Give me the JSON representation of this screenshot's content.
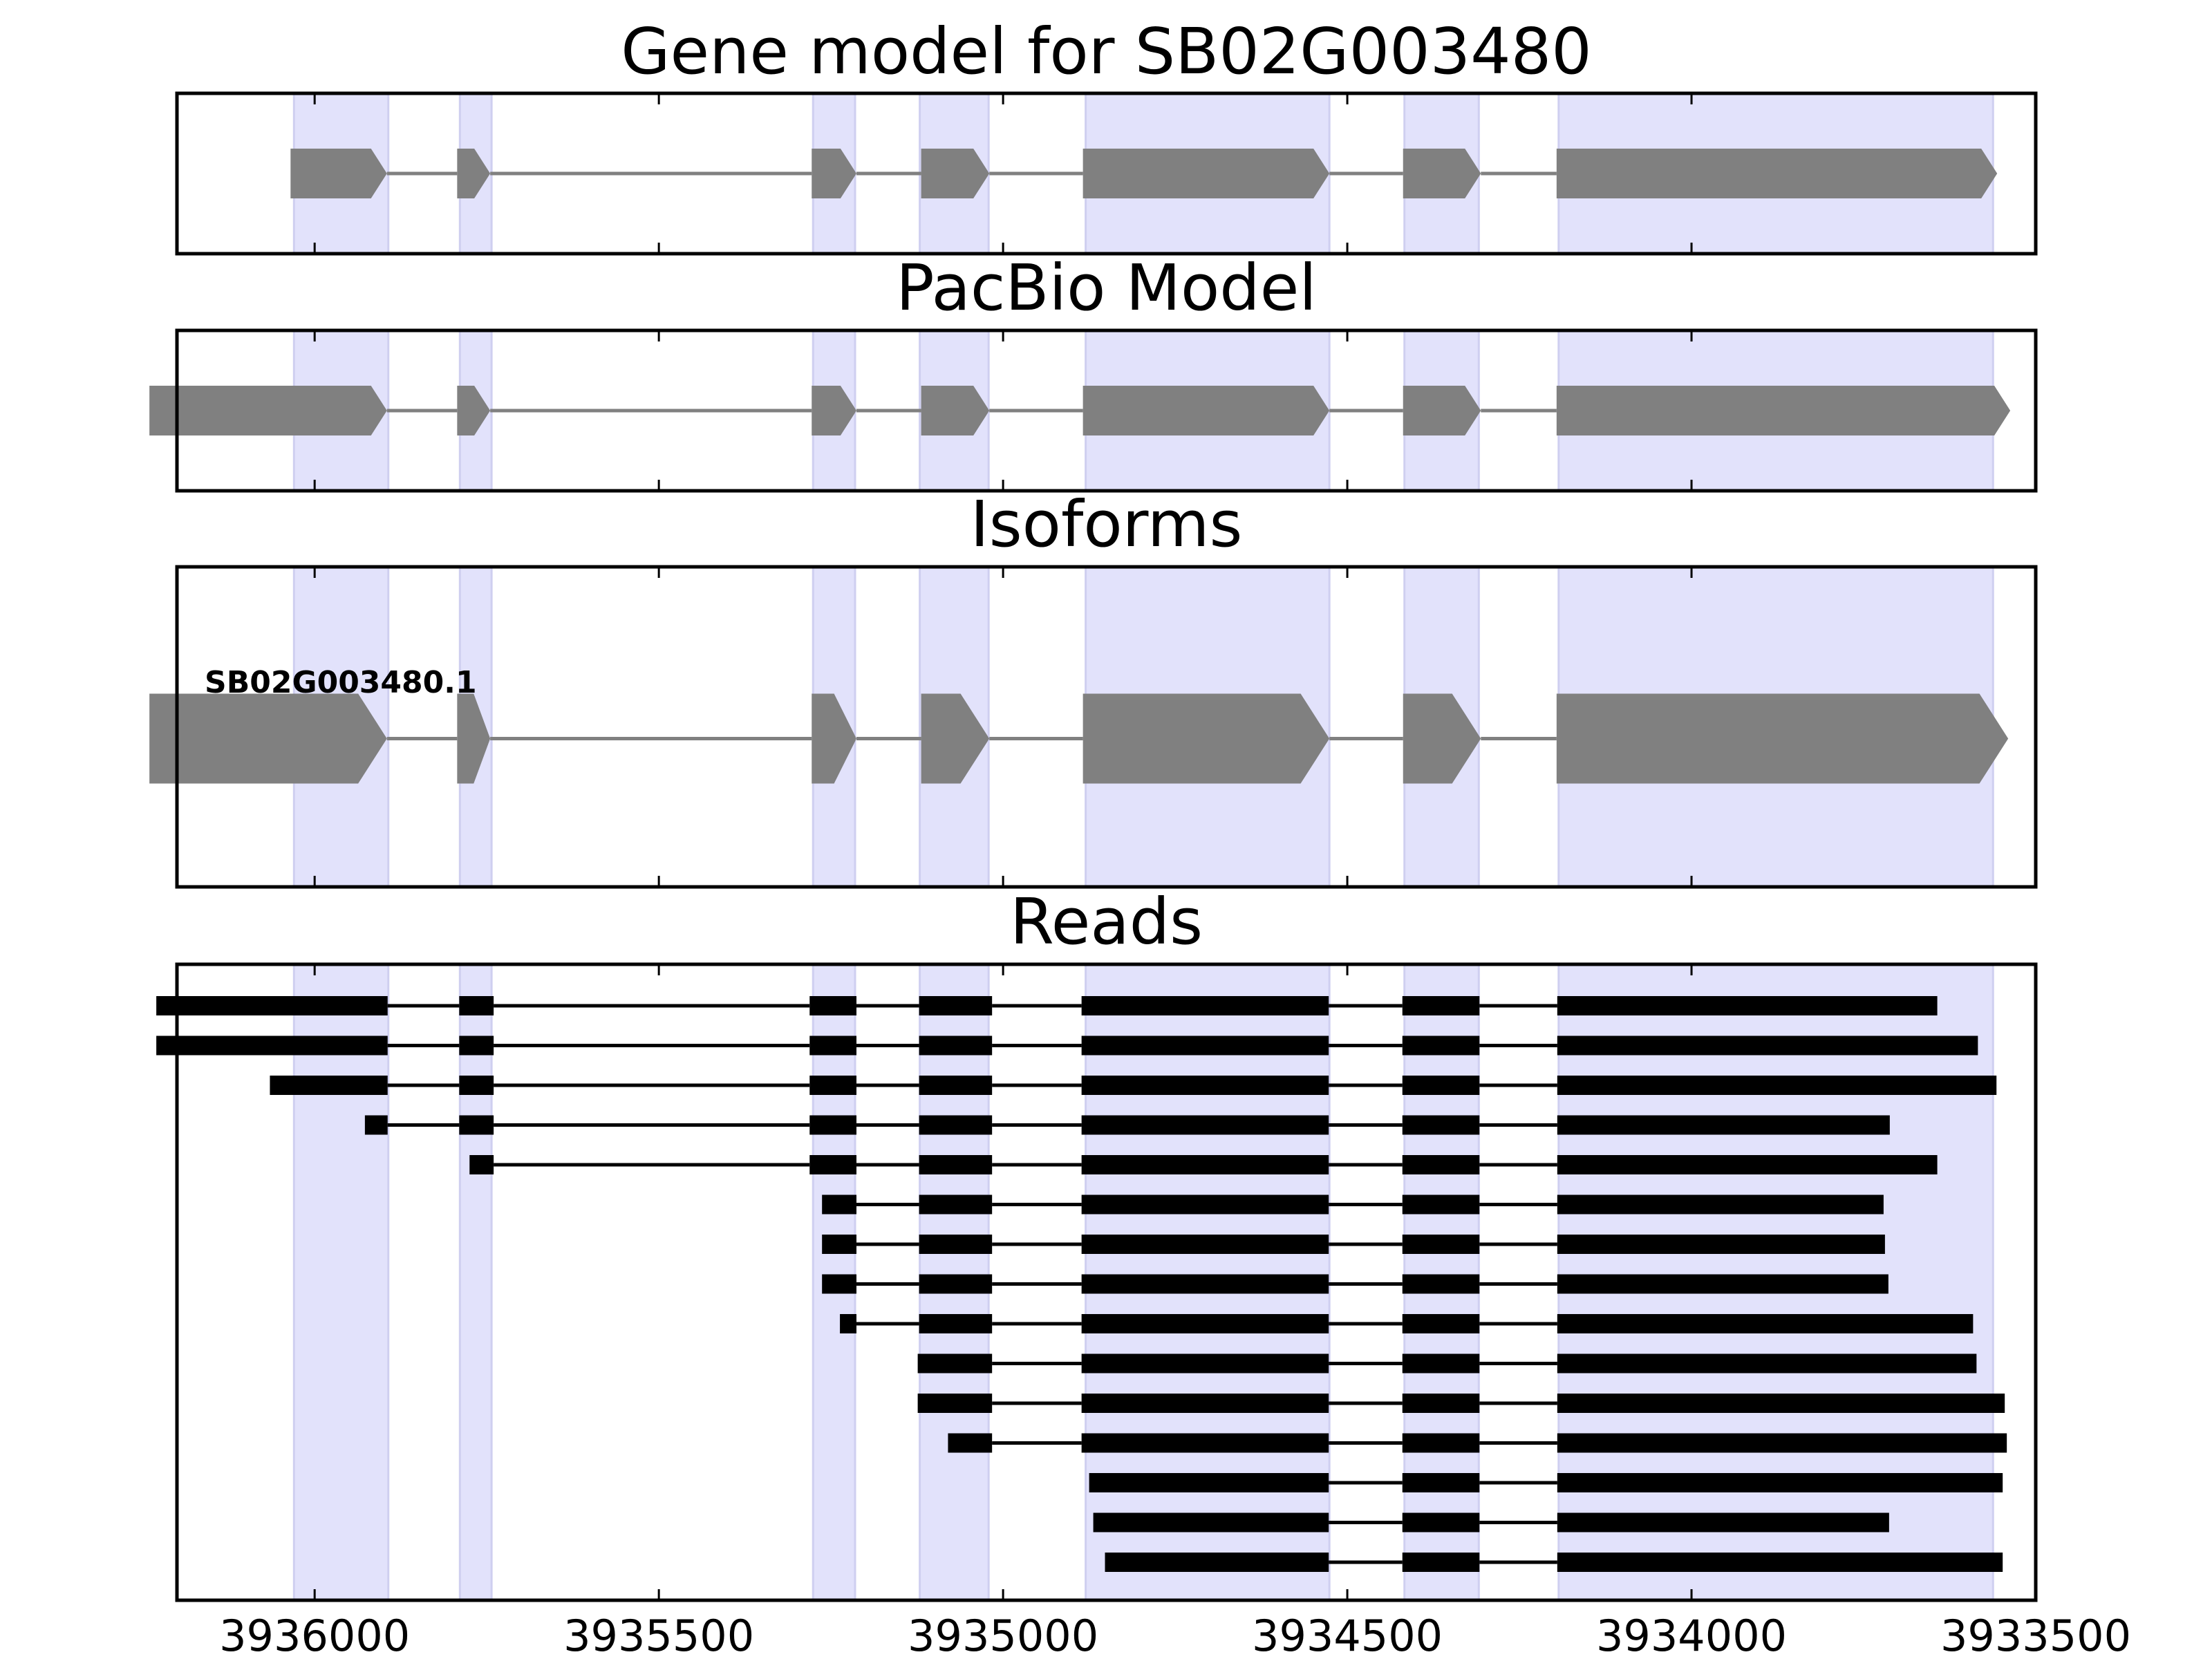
{
  "chart_data": {
    "type": "gene-track",
    "gene": "SB02G003480",
    "x_range": [
      3936200,
      3933500
    ],
    "x_ticks": [
      3936000,
      3935500,
      3935000,
      3934500,
      3934000,
      3933500
    ],
    "x_tick_labels": [
      "3936000",
      "3935500",
      "3935000",
      "3934500",
      "3934000",
      "3933500"
    ],
    "colors": {
      "exon_fill": "#808080",
      "intron_line": "#808080",
      "read_fill": "#000000",
      "highlight": "#e2e2fb",
      "highlight_edge": "#cfcff0",
      "frame": "#000000"
    },
    "highlight_regions": [
      [
        3936030,
        3935893
      ],
      [
        3935789,
        3935743
      ],
      [
        3935276,
        3935215
      ],
      [
        3935121,
        3935021
      ],
      [
        3934880,
        3934526
      ],
      [
        3934417,
        3934309
      ],
      [
        3934193,
        3933562
      ]
    ],
    "panels": [
      {
        "title": "Gene model for SB02G003480",
        "kind": "model",
        "models": [
          {
            "label": "",
            "exons": [
              [
                3936035,
                3935895
              ],
              [
                3935793,
                3935745
              ],
              [
                3935278,
                3935213
              ],
              [
                3935119,
                3935020
              ],
              [
                3934884,
                3934526
              ],
              [
                3934419,
                3934306
              ],
              [
                3934196,
                3933556
              ]
            ]
          }
        ]
      },
      {
        "title": "PacBio Model",
        "kind": "model",
        "models": [
          {
            "label": "",
            "exons": [
              [
                3936240,
                3935895
              ],
              [
                3935793,
                3935745
              ],
              [
                3935278,
                3935213
              ],
              [
                3935119,
                3935020
              ],
              [
                3934884,
                3934526
              ],
              [
                3934419,
                3934306
              ],
              [
                3934196,
                3933537
              ]
            ]
          }
        ]
      },
      {
        "title": "Isoforms",
        "kind": "model",
        "models": [
          {
            "label": "SB02G003480.1",
            "exons": [
              [
                3936240,
                3935895
              ],
              [
                3935793,
                3935745
              ],
              [
                3935278,
                3935213
              ],
              [
                3935119,
                3935020
              ],
              [
                3934884,
                3934526
              ],
              [
                3934419,
                3934306
              ],
              [
                3934196,
                3933540
              ]
            ]
          }
        ]
      },
      {
        "title": "Reads",
        "kind": "reads",
        "reads": [
          [
            [
              3936230,
              3935894
            ],
            [
              3935790,
              3935740
            ],
            [
              3935281,
              3935213
            ],
            [
              3935122,
              3935016
            ],
            [
              3934886,
              3934527
            ],
            [
              3934420,
              3934308
            ],
            [
              3934195,
              3933643
            ]
          ],
          [
            [
              3936230,
              3935894
            ],
            [
              3935790,
              3935740
            ],
            [
              3935281,
              3935213
            ],
            [
              3935122,
              3935016
            ],
            [
              3934886,
              3934527
            ],
            [
              3934420,
              3934308
            ],
            [
              3934195,
              3933584
            ]
          ],
          [
            [
              3936065,
              3935894
            ],
            [
              3935790,
              3935740
            ],
            [
              3935281,
              3935213
            ],
            [
              3935122,
              3935016
            ],
            [
              3934886,
              3934527
            ],
            [
              3934420,
              3934308
            ],
            [
              3934195,
              3933557
            ]
          ],
          [
            [
              3935927,
              3935894
            ],
            [
              3935790,
              3935740
            ],
            [
              3935281,
              3935213
            ],
            [
              3935122,
              3935016
            ],
            [
              3934886,
              3934527
            ],
            [
              3934420,
              3934308
            ],
            [
              3934195,
              3933712
            ]
          ],
          [
            [
              3935775,
              3935740
            ],
            [
              3935281,
              3935213
            ],
            [
              3935122,
              3935016
            ],
            [
              3934886,
              3934527
            ],
            [
              3934420,
              3934308
            ],
            [
              3934195,
              3933643
            ]
          ],
          [
            [
              3935263,
              3935213
            ],
            [
              3935122,
              3935016
            ],
            [
              3934886,
              3934527
            ],
            [
              3934420,
              3934308
            ],
            [
              3934195,
              3933721
            ]
          ],
          [
            [
              3935263,
              3935213
            ],
            [
              3935122,
              3935016
            ],
            [
              3934886,
              3934527
            ],
            [
              3934420,
              3934308
            ],
            [
              3934195,
              3933719
            ]
          ],
          [
            [
              3935263,
              3935213
            ],
            [
              3935122,
              3935016
            ],
            [
              3934886,
              3934527
            ],
            [
              3934420,
              3934308
            ],
            [
              3934195,
              3933714
            ]
          ],
          [
            [
              3935237,
              3935213
            ],
            [
              3935122,
              3935016
            ],
            [
              3934886,
              3934527
            ],
            [
              3934420,
              3934308
            ],
            [
              3934195,
              3933591
            ]
          ],
          [
            [
              3935124,
              3935016
            ],
            [
              3934886,
              3934527
            ],
            [
              3934420,
              3934308
            ],
            [
              3934195,
              3933586
            ]
          ],
          [
            [
              3935124,
              3935016
            ],
            [
              3934886,
              3934527
            ],
            [
              3934420,
              3934308
            ],
            [
              3934195,
              3933545
            ]
          ],
          [
            [
              3935080,
              3935016
            ],
            [
              3934886,
              3934527
            ],
            [
              3934420,
              3934308
            ],
            [
              3934195,
              3933542
            ]
          ],
          [
            [
              3934875,
              3934527
            ],
            [
              3934420,
              3934308
            ],
            [
              3934195,
              3933548
            ]
          ],
          [
            [
              3934869,
              3934527
            ],
            [
              3934420,
              3934308
            ],
            [
              3934195,
              3933713
            ]
          ],
          [
            [
              3934852,
              3934527
            ],
            [
              3934420,
              3934308
            ],
            [
              3934195,
              3933548
            ]
          ]
        ]
      }
    ]
  }
}
